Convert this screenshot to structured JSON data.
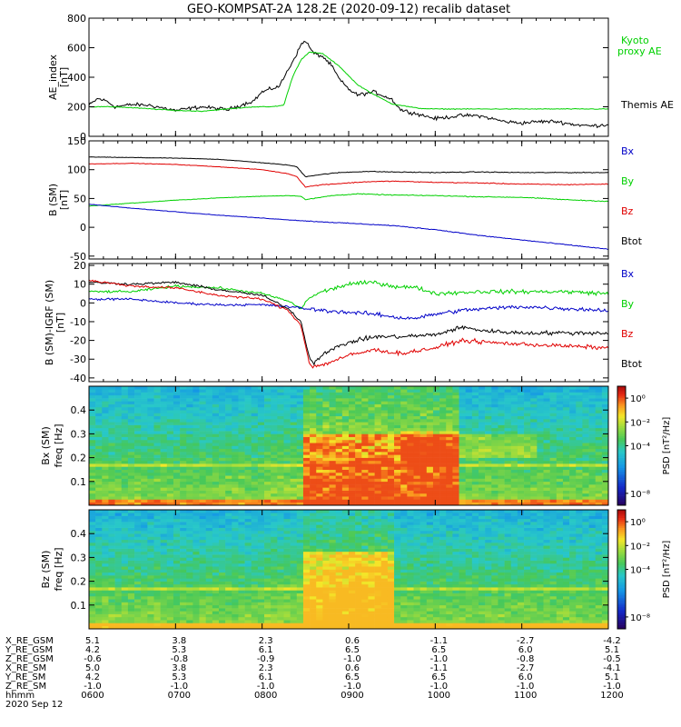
{
  "title": "GEO-KOMPSAT-2A 128.2E (2020-09-12) recalib dataset",
  "colors": {
    "black": "#000000",
    "red": "#e00000",
    "green": "#00d000",
    "blue": "#0000c8",
    "kyoto": "#00d000"
  },
  "chart_data": [
    {
      "type": "line",
      "ylabel": "AE_index [nT]",
      "ylim": [
        0,
        800
      ],
      "yticks": [
        0,
        200,
        400,
        600,
        800
      ],
      "legend": [
        {
          "name": "Kyoto proxy AE",
          "lines": [
            "Kyoto",
            "proxy AE"
          ],
          "color": "green"
        },
        {
          "name": "Themis AE",
          "lines": [
            "Themis AE"
          ],
          "color": "black"
        }
      ],
      "series": [
        {
          "name": "Themis AE",
          "color": "black",
          "x": [
            6.0,
            6.1,
            6.2,
            6.3,
            6.5,
            6.7,
            7.0,
            7.3,
            7.6,
            7.9,
            8.0,
            8.2,
            8.3,
            8.4,
            8.45,
            8.5,
            8.55,
            8.6,
            8.7,
            8.8,
            8.9,
            9.0,
            9.1,
            9.3,
            9.5,
            9.6,
            9.8,
            10.0,
            10.3,
            10.5,
            10.8,
            11.0,
            11.2,
            11.4,
            11.6,
            11.8,
            12.0
          ],
          "y": [
            210,
            255,
            240,
            200,
            215,
            210,
            175,
            200,
            180,
            240,
            300,
            340,
            450,
            560,
            620,
            650,
            600,
            560,
            540,
            480,
            380,
            320,
            280,
            300,
            250,
            180,
            150,
            120,
            140,
            140,
            100,
            90,
            100,
            100,
            80,
            70,
            80
          ]
        },
        {
          "name": "Kyoto proxy AE",
          "color": "green",
          "x": [
            6.0,
            6.3,
            6.6,
            7.0,
            7.3,
            7.6,
            7.9,
            8.1,
            8.25,
            8.35,
            8.45,
            8.55,
            8.7,
            8.9,
            9.1,
            9.3,
            9.5,
            9.8,
            10.0,
            10.5,
            11.0,
            11.5,
            12.0
          ],
          "y": [
            200,
            200,
            190,
            175,
            170,
            185,
            200,
            200,
            210,
            400,
            520,
            570,
            560,
            470,
            350,
            280,
            220,
            190,
            185,
            185,
            185,
            185,
            185
          ]
        }
      ]
    },
    {
      "type": "line",
      "ylabel": "B (SM) [nT]",
      "ylim": [
        -55,
        150
      ],
      "yticks": [
        -50,
        0,
        50,
        100,
        150
      ],
      "legend": [
        {
          "name": "Bx",
          "lines": [
            "Bx"
          ],
          "color": "blue"
        },
        {
          "name": "By",
          "lines": [
            "By"
          ],
          "color": "green"
        },
        {
          "name": "Bz",
          "lines": [
            "Bz"
          ],
          "color": "red"
        },
        {
          "name": "Btot",
          "lines": [
            "Btot"
          ],
          "color": "black"
        }
      ],
      "series": [
        {
          "name": "Btot",
          "color": "black",
          "x": [
            6.0,
            6.5,
            7.0,
            7.5,
            8.0,
            8.3,
            8.4,
            8.5,
            8.6,
            8.7,
            8.9,
            9.2,
            9.5,
            10.0,
            10.5,
            11.0,
            11.5,
            12.0
          ],
          "y": [
            122,
            121,
            120,
            118,
            112,
            108,
            105,
            88,
            90,
            92,
            95,
            97,
            96,
            95,
            96,
            95,
            95,
            95
          ]
        },
        {
          "name": "Bz",
          "color": "red",
          "x": [
            6.0,
            6.5,
            7.0,
            7.5,
            8.0,
            8.3,
            8.4,
            8.5,
            8.6,
            8.7,
            8.9,
            9.2,
            9.5,
            10.0,
            10.5,
            11.0,
            11.5,
            12.0
          ],
          "y": [
            110,
            111,
            109,
            105,
            100,
            93,
            88,
            70,
            72,
            74,
            76,
            79,
            80,
            78,
            77,
            75,
            74,
            75
          ]
        },
        {
          "name": "By",
          "color": "green",
          "x": [
            6.0,
            6.5,
            7.0,
            7.5,
            8.0,
            8.3,
            8.45,
            8.5,
            8.6,
            8.8,
            9.1,
            9.5,
            10.0,
            10.5,
            11.0,
            11.5,
            12.0
          ],
          "y": [
            37,
            42,
            47,
            51,
            54,
            55,
            54,
            48,
            50,
            55,
            58,
            56,
            55,
            53,
            52,
            48,
            45
          ]
        },
        {
          "name": "Bx",
          "color": "blue",
          "x": [
            6.0,
            6.5,
            7.0,
            7.5,
            8.0,
            8.5,
            9.0,
            9.5,
            10.0,
            10.5,
            11.0,
            11.5,
            12.0
          ],
          "y": [
            40,
            33,
            27,
            21,
            16,
            11,
            7,
            3,
            -4,
            -14,
            -22,
            -30,
            -38
          ]
        }
      ]
    },
    {
      "type": "line",
      "ylabel": "B (SM)-IGRF (SM) [nT]",
      "ylim": [
        -42,
        21
      ],
      "yticks": [
        -40,
        -30,
        -20,
        -10,
        0,
        10,
        20
      ],
      "legend": [
        {
          "name": "Bx",
          "lines": [
            "Bx"
          ],
          "color": "blue"
        },
        {
          "name": "By",
          "lines": [
            "By"
          ],
          "color": "green"
        },
        {
          "name": "Bz",
          "lines": [
            "Bz"
          ],
          "color": "red"
        },
        {
          "name": "Btot",
          "lines": [
            "Btot"
          ],
          "color": "black"
        }
      ],
      "series": [
        {
          "name": "By",
          "color": "green",
          "x": [
            6.0,
            6.5,
            7.0,
            7.5,
            8.0,
            8.3,
            8.45,
            8.55,
            8.7,
            9.0,
            9.3,
            9.5,
            9.8,
            10.0,
            10.5,
            11.0,
            11.5,
            12.0
          ],
          "y": [
            6,
            6,
            9,
            8,
            5,
            1,
            -3,
            3,
            6,
            10,
            11,
            9,
            8,
            5,
            6,
            6,
            6,
            5
          ]
        },
        {
          "name": "Bx",
          "color": "blue",
          "x": [
            6.0,
            6.5,
            7.0,
            7.5,
            8.0,
            8.3,
            8.5,
            8.7,
            9.0,
            9.3,
            9.6,
            9.8,
            10.0,
            10.3,
            10.6,
            11.0,
            11.5,
            12.0
          ],
          "y": [
            2,
            2,
            0,
            -1,
            -1,
            -2,
            -3,
            -4,
            -5,
            -6,
            -8,
            -8,
            -6,
            -4,
            -3,
            -2,
            -3,
            -4
          ]
        },
        {
          "name": "Btot",
          "color": "black",
          "x": [
            6.0,
            6.5,
            7.0,
            7.5,
            8.0,
            8.3,
            8.45,
            8.55,
            8.6,
            8.7,
            9.0,
            9.3,
            9.6,
            10.0,
            10.3,
            10.6,
            11.0,
            11.5,
            12.0
          ],
          "y": [
            11,
            10,
            11,
            7,
            4,
            -3,
            -10,
            -30,
            -32,
            -27,
            -21,
            -18,
            -18,
            -17,
            -13,
            -15,
            -16,
            -16,
            -16
          ]
        },
        {
          "name": "Bz",
          "color": "red",
          "x": [
            6.0,
            6.5,
            7.0,
            7.5,
            8.0,
            8.3,
            8.45,
            8.55,
            8.6,
            8.7,
            9.0,
            9.3,
            9.6,
            10.0,
            10.3,
            10.6,
            11.0,
            11.5,
            12.0
          ],
          "y": [
            12,
            9,
            8,
            4,
            2,
            -4,
            -12,
            -33,
            -34,
            -33,
            -28,
            -25,
            -27,
            -24,
            -20,
            -21,
            -22,
            -23,
            -24
          ]
        }
      ]
    },
    {
      "type": "heatmap",
      "ylabel": "Bx (SM) freq [Hz]",
      "ylim": [
        0,
        0.5
      ],
      "yticks": [
        0.1,
        0.2,
        0.3,
        0.4
      ],
      "colorbar": {
        "label": "PSD [nT²/Hz]",
        "range_log10": [
          -9,
          1
        ],
        "ticks": [
          "10⁰",
          "10⁻²",
          "10⁻⁴",
          "10⁻⁸"
        ],
        "tick_log10": [
          0,
          -2,
          -4,
          -8
        ]
      },
      "xbins": 80,
      "ybins": 40,
      "low_freq_band_hz": 0.17,
      "activity_windows_hours": [
        [
          8.5,
          10.3
        ]
      ],
      "peak_psd_log10": 0
    },
    {
      "type": "heatmap",
      "ylabel": "Bz (SM) freq [Hz]",
      "ylim": [
        0,
        0.5
      ],
      "yticks": [
        0.1,
        0.2,
        0.3,
        0.4
      ],
      "colorbar": {
        "label": "PSD [nT²/Hz]",
        "range_log10": [
          -9,
          1
        ],
        "ticks": [
          "10⁰",
          "10⁻²",
          "10⁻⁴",
          "10⁻⁸"
        ],
        "tick_log10": [
          0,
          -2,
          -4,
          -8
        ]
      },
      "xbins": 80,
      "ybins": 40,
      "low_freq_band_hz": 0.17,
      "activity_windows_hours": [
        [
          8.5,
          9.5
        ]
      ],
      "peak_psd_log10": -1
    }
  ],
  "xaxis": {
    "range_hours": [
      6,
      12
    ],
    "tick_hours": [
      6,
      7,
      8,
      9,
      10,
      11,
      12
    ],
    "rows": [
      {
        "label": "X_RE_GSM",
        "values": [
          "5.1",
          "3.8",
          "2.3",
          "0.6",
          "-1.1",
          "-2.7",
          "-4.2"
        ]
      },
      {
        "label": "Y_RE_GSM",
        "values": [
          "4.2",
          "5.3",
          "6.1",
          "6.5",
          "6.5",
          "6.0",
          "5.1"
        ]
      },
      {
        "label": "Z_RE_GSM",
        "values": [
          "-0.6",
          "-0.8",
          "-0.9",
          "-1.0",
          "-1.0",
          "-0.8",
          "-0.5"
        ]
      },
      {
        "label": "X_RE_SM",
        "values": [
          "5.0",
          "3.8",
          "2.3",
          "0.6",
          "-1.1",
          "-2.7",
          "-4.1"
        ]
      },
      {
        "label": "Y_RE_SM",
        "values": [
          "4.2",
          "5.3",
          "6.1",
          "6.5",
          "6.5",
          "6.0",
          "5.1"
        ]
      },
      {
        "label": "Z_RE_SM",
        "values": [
          "-1.0",
          "-1.0",
          "-1.0",
          "-1.0",
          "-1.0",
          "-1.0",
          "-1.0"
        ]
      },
      {
        "label": "hhmm",
        "values": [
          "0600",
          "0700",
          "0800",
          "0900",
          "1000",
          "1100",
          "1200"
        ]
      }
    ],
    "date": "2020 Sep 12"
  }
}
